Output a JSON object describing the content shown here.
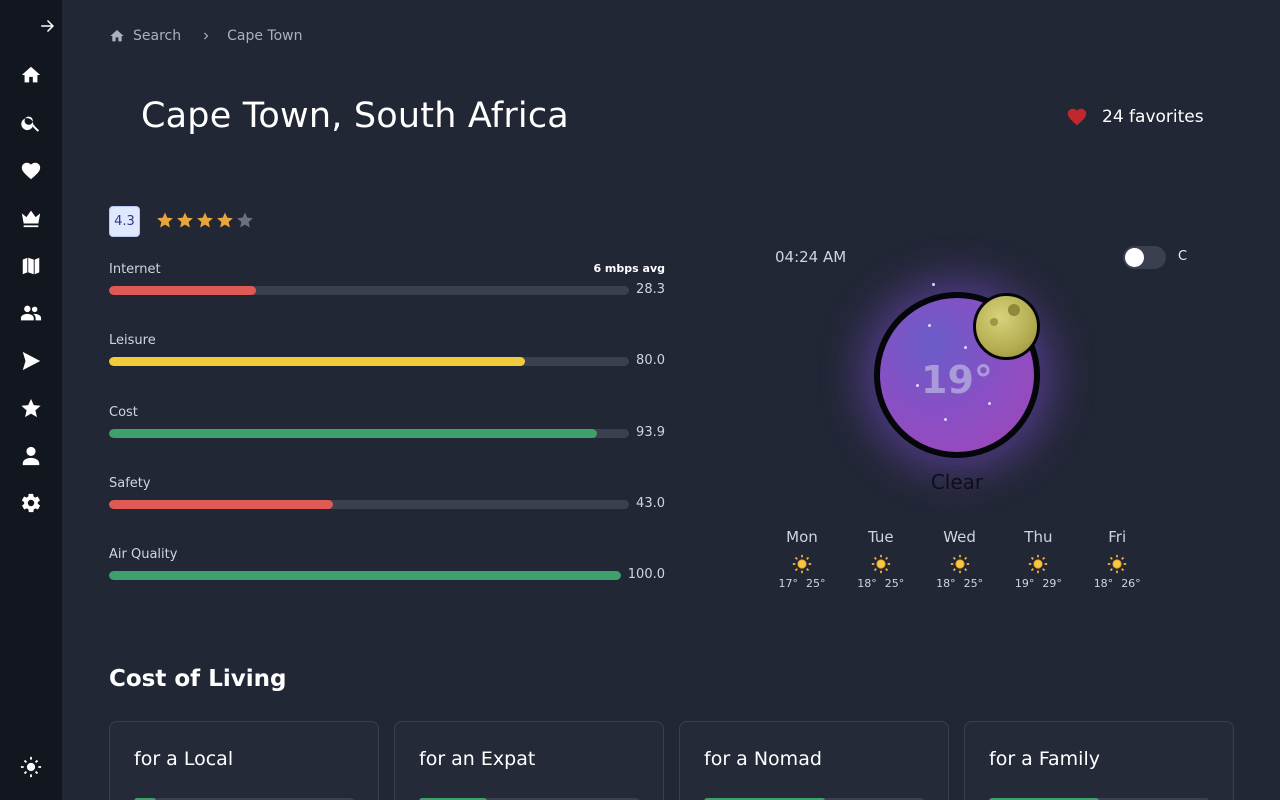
{
  "sidebar": {
    "items": [
      {
        "name": "home",
        "icon": "home-icon"
      },
      {
        "name": "search",
        "icon": "search-icon"
      },
      {
        "name": "favorites",
        "icon": "heart-icon"
      },
      {
        "name": "premium",
        "icon": "crown-icon"
      },
      {
        "name": "map",
        "icon": "map-icon"
      },
      {
        "name": "community",
        "icon": "people-icon"
      },
      {
        "name": "send",
        "icon": "send-icon"
      },
      {
        "name": "starred",
        "icon": "star-icon"
      },
      {
        "name": "profile",
        "icon": "person-icon"
      },
      {
        "name": "settings",
        "icon": "gear-icon"
      }
    ],
    "theme_icon": "sun-icon"
  },
  "breadcrumb": {
    "home_label": "Search",
    "current": "Cape Town"
  },
  "city": {
    "title": "Cape Town, South Africa",
    "favorites": "24 favorites"
  },
  "rating": {
    "score": "4.3",
    "stars_filled": 4,
    "stars_total": 5
  },
  "metrics": [
    {
      "label": "Internet",
      "extra": "6 mbps avg",
      "value": "28.3",
      "percent": 28.3,
      "color": "#e05a55"
    },
    {
      "label": "Leisure",
      "extra": "",
      "value": "80.0",
      "percent": 80.0,
      "color": "#f2cb3a"
    },
    {
      "label": "Cost",
      "extra": "",
      "value": "93.9",
      "percent": 93.9,
      "color": "#3ea06a"
    },
    {
      "label": "Safety",
      "extra": "",
      "value": "43.0",
      "percent": 43.0,
      "color": "#e05a55"
    },
    {
      "label": "Air Quality",
      "extra": "",
      "value": "100.0",
      "percent": 100.0,
      "color": "#3ea06a"
    }
  ],
  "weather": {
    "time": "04:24 AM",
    "unit": "C",
    "temperature": "19°",
    "condition": "Clear",
    "forecast": [
      {
        "day": "Mon",
        "low": "17°",
        "high": "25°",
        "icon": "sun-icon"
      },
      {
        "day": "Tue",
        "low": "18°",
        "high": "25°",
        "icon": "sun-icon"
      },
      {
        "day": "Wed",
        "low": "18°",
        "high": "25°",
        "icon": "sun-icon"
      },
      {
        "day": "Thu",
        "low": "19°",
        "high": "29°",
        "icon": "sun-icon"
      },
      {
        "day": "Fri",
        "low": "18°",
        "high": "26°",
        "icon": "sun-icon"
      }
    ]
  },
  "cost_of_living": {
    "title": "Cost of Living",
    "cards": [
      {
        "label": "for a Local",
        "percent": 10
      },
      {
        "label": "for an Expat",
        "percent": 31
      },
      {
        "label": "for a Nomad",
        "percent": 55
      },
      {
        "label": "for a Family",
        "percent": 50
      }
    ]
  }
}
